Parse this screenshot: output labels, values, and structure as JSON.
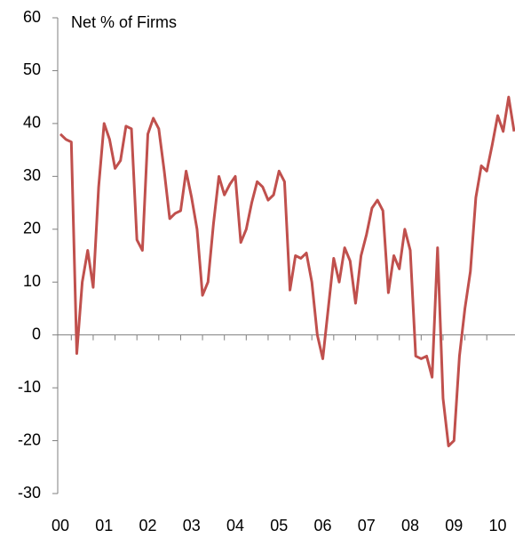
{
  "chart_data": {
    "type": "line",
    "title": "Net % of Firms",
    "categories": [
      "00",
      null,
      null,
      null,
      null,
      null,
      null,
      null,
      "01",
      null,
      null,
      null,
      null,
      null,
      null,
      null,
      "02",
      null,
      null,
      null,
      null,
      null,
      null,
      null,
      "03",
      null,
      null,
      null,
      null,
      null,
      null,
      null,
      "04",
      null,
      null,
      null,
      null,
      null,
      null,
      null,
      "05",
      null,
      null,
      null,
      null,
      null,
      null,
      null,
      "06",
      null,
      null,
      null,
      null,
      null,
      null,
      null,
      "07",
      null,
      null,
      null,
      null,
      null,
      null,
      null,
      "08",
      null,
      null,
      null,
      null,
      null,
      null,
      null,
      "09",
      null,
      null,
      null,
      null,
      null,
      null,
      null,
      "10",
      null,
      null,
      null
    ],
    "series": [
      {
        "name": "Net % of Firms",
        "color": "#c0504d",
        "values": [
          38,
          37,
          36.5,
          -3.5,
          10,
          16,
          9,
          28,
          40,
          37,
          31.5,
          33,
          39.5,
          39,
          18,
          16,
          38,
          41,
          39,
          31,
          22,
          23,
          23.5,
          31,
          26,
          20,
          7.5,
          10,
          21,
          30,
          26.5,
          28.5,
          30,
          17.5,
          20,
          25,
          29,
          28,
          25.5,
          26.5,
          31,
          29,
          8.5,
          15,
          14.5,
          15.5,
          10,
          0,
          -4.5,
          5,
          14.5,
          10,
          16.5,
          14,
          6,
          15,
          19,
          24,
          25.5,
          23.5,
          8,
          15,
          12.5,
          20,
          16,
          -4,
          -4.5,
          -4,
          -8,
          16.5,
          -12,
          -21,
          -20,
          -4,
          5,
          12,
          26,
          32,
          31,
          36,
          41.5,
          38.5,
          45,
          38.5
        ]
      }
    ],
    "ylim": [
      -30,
      60
    ],
    "yticks": [
      -30,
      -20,
      -10,
      0,
      10,
      20,
      30,
      40,
      50,
      60
    ]
  }
}
